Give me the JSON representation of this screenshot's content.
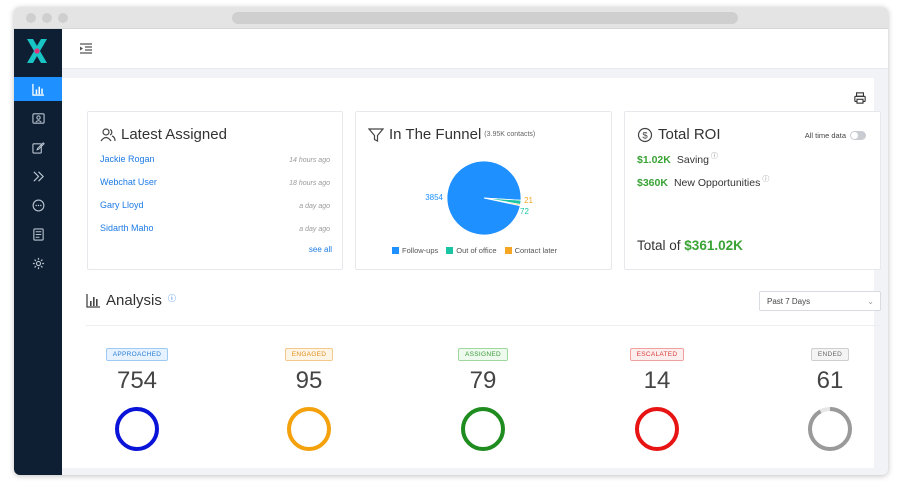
{
  "sidebar": {
    "items": [
      {
        "name": "nav-dashboard",
        "icon": "bar-chart-icon",
        "active": true
      },
      {
        "name": "nav-contacts",
        "icon": "contact-card-icon"
      },
      {
        "name": "nav-edit",
        "icon": "edit-icon"
      },
      {
        "name": "nav-forward",
        "icon": "double-chevron-icon"
      },
      {
        "name": "nav-chat",
        "icon": "chat-bubble-icon"
      },
      {
        "name": "nav-reports",
        "icon": "report-icon"
      },
      {
        "name": "nav-settings",
        "icon": "gear-icon"
      }
    ]
  },
  "latest": {
    "title": "Latest Assigned",
    "items": [
      {
        "name": "Jackie Rogan",
        "time": "14 hours ago"
      },
      {
        "name": "Webchat User",
        "time": "18 hours ago"
      },
      {
        "name": "Gary Lloyd",
        "time": "a day ago"
      },
      {
        "name": "Sidarth Maho",
        "time": "a day ago"
      }
    ],
    "see_all": "see all"
  },
  "funnel": {
    "title": "In The Funnel",
    "subtitle": "(3.95K contacts)",
    "legend": [
      "Follow-ups",
      "Out of office",
      "Contact later"
    ]
  },
  "chart_data": {
    "type": "pie",
    "categories": [
      "Follow-ups",
      "Out of office",
      "Contact later"
    ],
    "values": [
      3854,
      72,
      21
    ],
    "colors": [
      "#1e90ff",
      "#19c4a3",
      "#f5a623"
    ]
  },
  "roi": {
    "title": "Total ROI",
    "toggle_label": "All time data",
    "toggle_on": false,
    "saving_value": "$1.02K",
    "saving_label": "Saving",
    "opp_value": "$360K",
    "opp_label": "New Opportunities",
    "total_label": "Total of",
    "total_value": "$361.02K"
  },
  "analysis": {
    "title": "Analysis",
    "range": "Past 7 Days",
    "stats": [
      {
        "label": "APPROACHED",
        "value": "754",
        "color": "#0a14d8",
        "badge_bg": "#e6f2ff",
        "badge_border": "#9ccaf5",
        "badge_text": "#2a7fd4",
        "fill": 1.0
      },
      {
        "label": "ENGAGED",
        "value": "95",
        "color": "#f5a10b",
        "badge_bg": "#fff5e6",
        "badge_border": "#f5c98b",
        "badge_text": "#e08e1a",
        "fill": 1.0
      },
      {
        "label": "ASSIGNED",
        "value": "79",
        "color": "#1e8c1e",
        "badge_bg": "#eefaee",
        "badge_border": "#9fd89f",
        "badge_text": "#3a9a3a",
        "fill": 1.0
      },
      {
        "label": "ESCALATED",
        "value": "14",
        "color": "#e81414",
        "badge_bg": "#fdeeee",
        "badge_border": "#f0a0a0",
        "badge_text": "#d63c3c",
        "fill": 1.0
      },
      {
        "label": "ENDED",
        "value": "61",
        "color": "#9a9a9a",
        "badge_bg": "#f4f4f4",
        "badge_border": "#cfcfcf",
        "badge_text": "#666666",
        "fill": 0.92
      }
    ]
  }
}
